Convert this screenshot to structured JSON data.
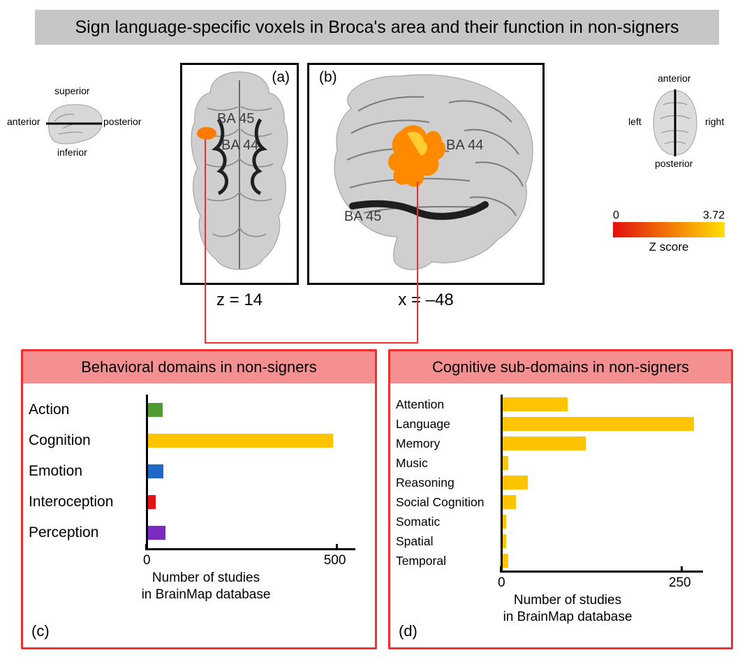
{
  "title": "Sign language-specific voxels in Broca's area and their function in non-signers",
  "orientation_left": {
    "labels": {
      "top": "superior",
      "bottom": "inferior",
      "left": "anterior",
      "right": "posterior"
    }
  },
  "orientation_right": {
    "labels": {
      "top": "anterior",
      "bottom": "posterior",
      "left": "left",
      "right": "right"
    }
  },
  "panel_a": {
    "label": "(a)",
    "ba44": "BA 44",
    "ba45": "BA 45",
    "caption": "z = 14"
  },
  "panel_b": {
    "label": "(b)",
    "ba44": "BA 44",
    "ba45": "BA 45",
    "caption": "x = –48"
  },
  "colorbar": {
    "min": "0",
    "max": "3.72",
    "label": "Z score",
    "gradient_from": "#e40f0f",
    "gradient_to": "#ffe000"
  },
  "chart_c": {
    "title": "Behavioral domains in non-signers",
    "sublabel": "(c)",
    "xaxis_label": "Number of studies\nin BrainMap database",
    "xmax": 550,
    "xticks": [
      {
        "val": 0,
        "label": "0"
      },
      {
        "val": 500,
        "label": "500"
      }
    ],
    "bars": [
      {
        "label": "Action",
        "value": 38,
        "color": "#4f9b33"
      },
      {
        "label": "Cognition",
        "value": 485,
        "color": "#ffc400"
      },
      {
        "label": "Emotion",
        "value": 40,
        "color": "#2067c6"
      },
      {
        "label": "Interoception",
        "value": 20,
        "color": "#e41414"
      },
      {
        "label": "Perception",
        "value": 45,
        "color": "#7b2bbf"
      }
    ],
    "cat_width": 168,
    "track_width": 300
  },
  "chart_d": {
    "title": "Cognitive sub-domains in non-signers",
    "sublabel": "(d)",
    "xaxis_label": "Number of studies\nin BrainMap database",
    "xmax": 280,
    "xticks": [
      {
        "val": 0,
        "label": "0"
      },
      {
        "val": 250,
        "label": "250"
      }
    ],
    "bars": [
      {
        "label": "Attention",
        "value": 90,
        "color": "#ffc400"
      },
      {
        "label": "Language",
        "value": 265,
        "color": "#ffc400"
      },
      {
        "label": "Memory",
        "value": 115,
        "color": "#ffc400"
      },
      {
        "label": "Music",
        "value": 8,
        "color": "#ffc400"
      },
      {
        "label": "Reasoning",
        "value": 35,
        "color": "#ffc400"
      },
      {
        "label": "Social Cognition",
        "value": 18,
        "color": "#ffc400"
      },
      {
        "label": "Somatic",
        "value": 5,
        "color": "#ffc400"
      },
      {
        "label": "Spatial",
        "value": 5,
        "color": "#ffc400"
      },
      {
        "label": "Temporal",
        "value": 8,
        "color": "#ffc400"
      }
    ],
    "cat_width": 150,
    "track_width": 290
  }
}
